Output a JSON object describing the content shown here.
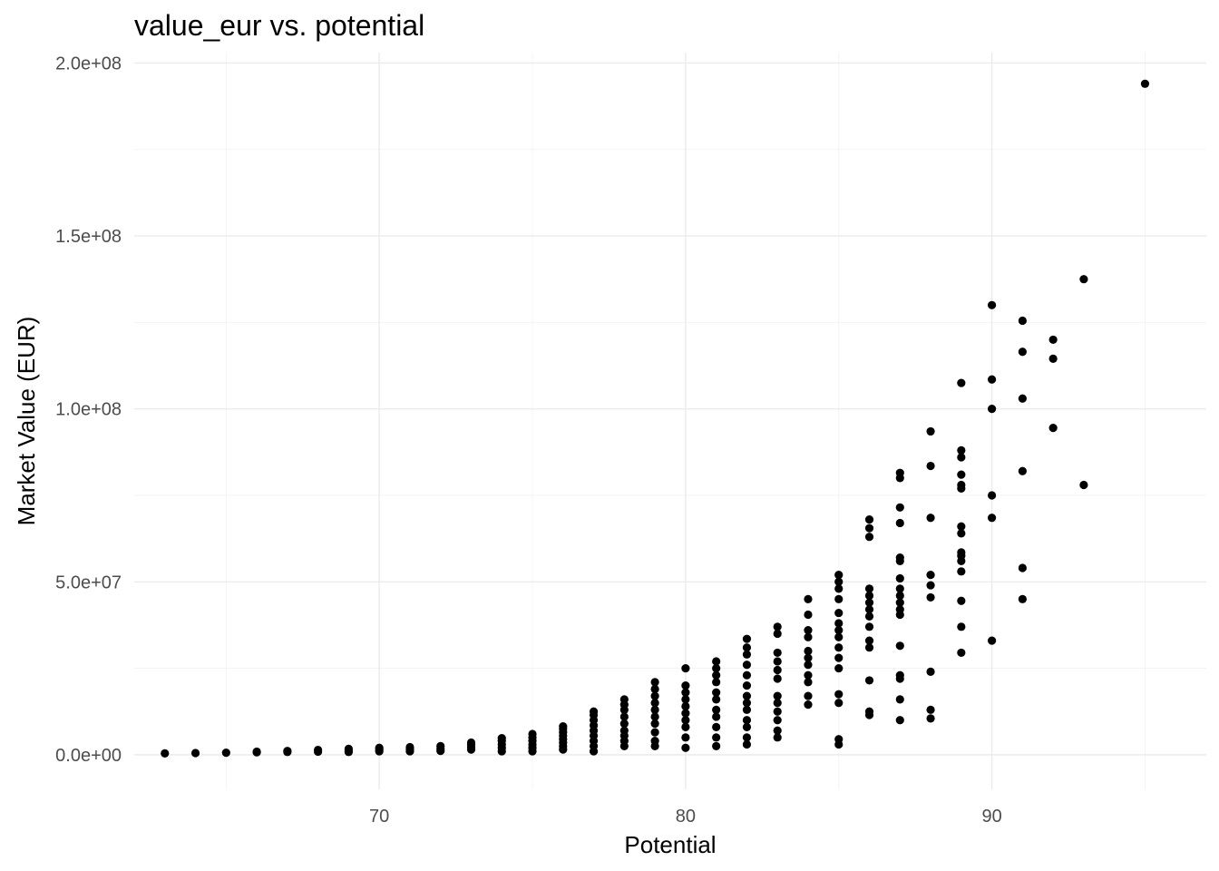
{
  "chart_data": {
    "type": "scatter",
    "title": "value_eur vs. potential",
    "xlabel": "Potential",
    "ylabel": "Market Value (EUR)",
    "xlim": [
      62,
      97
    ],
    "ylim": [
      -10000000,
      203000000
    ],
    "x_ticks": [
      {
        "value": 70,
        "label": "70"
      },
      {
        "value": 80,
        "label": "80"
      },
      {
        "value": 90,
        "label": "90"
      }
    ],
    "y_ticks": [
      {
        "value": 0,
        "label": "0.0e+00"
      },
      {
        "value": 50000000,
        "label": "5.0e+07"
      },
      {
        "value": 100000000,
        "label": "1.0e+08"
      },
      {
        "value": 150000000,
        "label": "1.5e+08"
      },
      {
        "value": 200000000,
        "label": "2.0e+08"
      }
    ],
    "grid": true,
    "point_color": "#000000",
    "series": [
      {
        "points": [
          [
            63,
            400000
          ],
          [
            64,
            500000
          ],
          [
            65,
            600000
          ],
          [
            66,
            700000
          ],
          [
            66,
            900000
          ],
          [
            67,
            800000
          ],
          [
            67,
            1100000
          ],
          [
            68,
            900000
          ],
          [
            68,
            1400000
          ],
          [
            69,
            800000
          ],
          [
            69,
            1200000
          ],
          [
            69,
            1700000
          ],
          [
            70,
            1000000
          ],
          [
            70,
            1500000
          ],
          [
            70,
            2000000
          ],
          [
            71,
            1000000
          ],
          [
            71,
            1600000
          ],
          [
            71,
            2200000
          ],
          [
            72,
            1100000
          ],
          [
            72,
            1800000
          ],
          [
            72,
            2500000
          ],
          [
            73,
            1500000
          ],
          [
            73,
            2200000
          ],
          [
            73,
            3000000
          ],
          [
            73,
            3500000
          ],
          [
            74,
            1000000
          ],
          [
            74,
            2000000
          ],
          [
            74,
            3000000
          ],
          [
            74,
            4000000
          ],
          [
            74,
            4800000
          ],
          [
            75,
            1000000
          ],
          [
            75,
            2000000
          ],
          [
            75,
            3000000
          ],
          [
            75,
            4000000
          ],
          [
            75,
            5000000
          ],
          [
            75,
            6000000
          ],
          [
            76,
            1500000
          ],
          [
            76,
            2500000
          ],
          [
            76,
            3500000
          ],
          [
            76,
            4500000
          ],
          [
            76,
            5500000
          ],
          [
            76,
            6500000
          ],
          [
            76,
            7500000
          ],
          [
            76,
            8200000
          ],
          [
            77,
            1000000
          ],
          [
            77,
            2500000
          ],
          [
            77,
            4000000
          ],
          [
            77,
            5500000
          ],
          [
            77,
            7000000
          ],
          [
            77,
            8500000
          ],
          [
            77,
            10000000
          ],
          [
            77,
            11500000
          ],
          [
            77,
            12500000
          ],
          [
            78,
            2500000
          ],
          [
            78,
            4000000
          ],
          [
            78,
            5500000
          ],
          [
            78,
            7000000
          ],
          [
            78,
            9000000
          ],
          [
            78,
            11000000
          ],
          [
            78,
            13000000
          ],
          [
            78,
            14500000
          ],
          [
            78,
            16000000
          ],
          [
            79,
            2500000
          ],
          [
            79,
            4000000
          ],
          [
            79,
            6500000
          ],
          [
            79,
            9000000
          ],
          [
            79,
            11000000
          ],
          [
            79,
            13000000
          ],
          [
            79,
            15000000
          ],
          [
            79,
            17000000
          ],
          [
            79,
            19000000
          ],
          [
            79,
            21000000
          ],
          [
            80,
            2000000
          ],
          [
            80,
            5000000
          ],
          [
            80,
            8000000
          ],
          [
            80,
            10000000
          ],
          [
            80,
            12000000
          ],
          [
            80,
            14000000
          ],
          [
            80,
            16000000
          ],
          [
            80,
            18000000
          ],
          [
            80,
            20000000
          ],
          [
            80,
            25000000
          ],
          [
            81,
            2500000
          ],
          [
            81,
            5000000
          ],
          [
            81,
            8000000
          ],
          [
            81,
            11000000
          ],
          [
            81,
            13000000
          ],
          [
            81,
            16000000
          ],
          [
            81,
            18000000
          ],
          [
            81,
            21000000
          ],
          [
            81,
            23000000
          ],
          [
            81,
            25000000
          ],
          [
            81,
            27000000
          ],
          [
            82,
            3000000
          ],
          [
            82,
            5000000
          ],
          [
            82,
            8000000
          ],
          [
            82,
            10000000
          ],
          [
            82,
            13000000
          ],
          [
            82,
            15000000
          ],
          [
            82,
            17000000
          ],
          [
            82,
            20000000
          ],
          [
            82,
            23000000
          ],
          [
            82,
            26000000
          ],
          [
            82,
            29000000
          ],
          [
            82,
            31000000
          ],
          [
            82,
            33500000
          ],
          [
            83,
            5000000
          ],
          [
            83,
            7000000
          ],
          [
            83,
            10000000
          ],
          [
            83,
            12500000
          ],
          [
            83,
            15000000
          ],
          [
            83,
            17000000
          ],
          [
            83,
            22000000
          ],
          [
            83,
            24500000
          ],
          [
            83,
            27000000
          ],
          [
            83,
            29500000
          ],
          [
            83,
            35000000
          ],
          [
            83,
            37000000
          ],
          [
            84,
            14500000
          ],
          [
            84,
            17000000
          ],
          [
            84,
            21000000
          ],
          [
            84,
            23000000
          ],
          [
            84,
            26000000
          ],
          [
            84,
            28000000
          ],
          [
            84,
            30000000
          ],
          [
            84,
            34000000
          ],
          [
            84,
            36000000
          ],
          [
            84,
            40500000
          ],
          [
            84,
            45000000
          ],
          [
            85,
            3000000
          ],
          [
            85,
            4500000
          ],
          [
            85,
            15000000
          ],
          [
            85,
            17500000
          ],
          [
            85,
            25000000
          ],
          [
            85,
            28000000
          ],
          [
            85,
            31000000
          ],
          [
            85,
            34000000
          ],
          [
            85,
            36000000
          ],
          [
            85,
            38000000
          ],
          [
            85,
            41000000
          ],
          [
            85,
            45000000
          ],
          [
            85,
            48000000
          ],
          [
            85,
            50000000
          ],
          [
            85,
            52000000
          ],
          [
            86,
            11500000
          ],
          [
            86,
            12500000
          ],
          [
            86,
            21500000
          ],
          [
            86,
            31000000
          ],
          [
            86,
            33000000
          ],
          [
            86,
            37000000
          ],
          [
            86,
            40000000
          ],
          [
            86,
            42000000
          ],
          [
            86,
            44000000
          ],
          [
            86,
            46000000
          ],
          [
            86,
            48000000
          ],
          [
            86,
            63000000
          ],
          [
            86,
            65500000
          ],
          [
            86,
            68000000
          ],
          [
            87,
            10000000
          ],
          [
            87,
            16000000
          ],
          [
            87,
            22000000
          ],
          [
            87,
            23000000
          ],
          [
            87,
            31500000
          ],
          [
            87,
            40500000
          ],
          [
            87,
            42000000
          ],
          [
            87,
            44000000
          ],
          [
            87,
            46000000
          ],
          [
            87,
            48000000
          ],
          [
            87,
            51000000
          ],
          [
            87,
            56000000
          ],
          [
            87,
            57000000
          ],
          [
            87,
            67000000
          ],
          [
            87,
            71500000
          ],
          [
            87,
            80000000
          ],
          [
            87,
            81500000
          ],
          [
            88,
            10500000
          ],
          [
            88,
            13000000
          ],
          [
            88,
            24000000
          ],
          [
            88,
            45500000
          ],
          [
            88,
            49000000
          ],
          [
            88,
            52000000
          ],
          [
            88,
            68500000
          ],
          [
            88,
            83500000
          ],
          [
            88,
            93500000
          ],
          [
            89,
            29500000
          ],
          [
            89,
            37000000
          ],
          [
            89,
            44500000
          ],
          [
            89,
            53000000
          ],
          [
            89,
            56000000
          ],
          [
            89,
            57500000
          ],
          [
            89,
            58500000
          ],
          [
            89,
            64000000
          ],
          [
            89,
            66000000
          ],
          [
            89,
            77000000
          ],
          [
            89,
            78000000
          ],
          [
            89,
            81000000
          ],
          [
            89,
            86000000
          ],
          [
            89,
            88000000
          ],
          [
            89,
            107500000
          ],
          [
            90,
            33000000
          ],
          [
            90,
            68500000
          ],
          [
            90,
            75000000
          ],
          [
            90,
            100000000
          ],
          [
            90,
            108500000
          ],
          [
            90,
            130000000
          ],
          [
            91,
            45000000
          ],
          [
            91,
            54000000
          ],
          [
            91,
            82000000
          ],
          [
            91,
            103000000
          ],
          [
            91,
            116500000
          ],
          [
            91,
            125500000
          ],
          [
            92,
            94500000
          ],
          [
            92,
            114500000
          ],
          [
            92,
            120000000
          ],
          [
            93,
            78000000
          ],
          [
            93,
            137500000
          ],
          [
            95,
            194000000
          ]
        ]
      }
    ]
  }
}
